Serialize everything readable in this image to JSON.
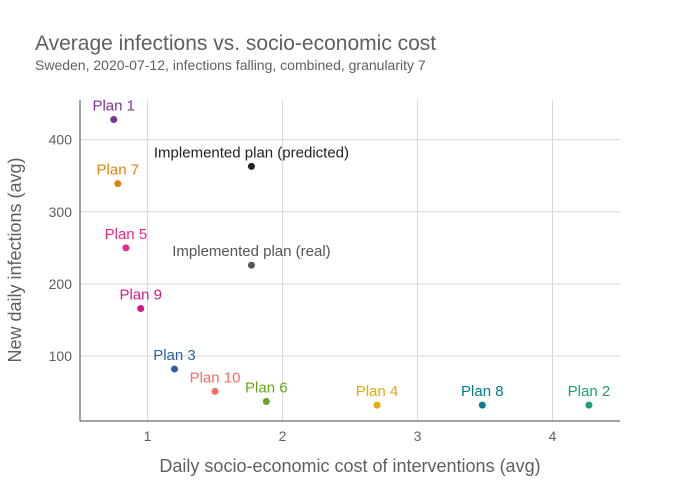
{
  "chart_data": {
    "type": "scatter",
    "title": "Average infections vs. socio-economic cost",
    "subtitle": "Sweden, 2020-07-12, infections falling, combined, granularity 7",
    "xlabel": "Daily socio-economic cost of interventions (avg)",
    "ylabel": "New daily infections (avg)",
    "xlim": [
      0.5,
      4.5
    ],
    "ylim": [
      10,
      455
    ],
    "xticks": [
      1,
      2,
      3,
      4
    ],
    "yticks": [
      100,
      200,
      300,
      400
    ],
    "grid": true,
    "points": [
      {
        "label": "Plan 1",
        "x": 0.75,
        "y": 428,
        "color": "#7b3294"
      },
      {
        "label": "Plan 7",
        "x": 0.78,
        "y": 339,
        "color": "#e08214"
      },
      {
        "label": "Plan 5",
        "x": 0.84,
        "y": 250,
        "color": "#e7298a"
      },
      {
        "label": "Plan 9",
        "x": 0.95,
        "y": 166,
        "color": "#d01c8b"
      },
      {
        "label": "Plan 3",
        "x": 1.2,
        "y": 82,
        "color": "#2c5fa3"
      },
      {
        "label": "Plan 10",
        "x": 1.5,
        "y": 51,
        "color": "#f46d5f"
      },
      {
        "label": "Plan 6",
        "x": 1.88,
        "y": 37,
        "color": "#66a61e"
      },
      {
        "label": "Plan 4",
        "x": 2.7,
        "y": 32,
        "color": "#e6ab02"
      },
      {
        "label": "Plan 8",
        "x": 3.48,
        "y": 32,
        "color": "#00808a"
      },
      {
        "label": "Plan 2",
        "x": 4.27,
        "y": 32,
        "color": "#1b9e77"
      },
      {
        "label": "Implemented plan (predicted)",
        "x": 1.77,
        "y": 363,
        "color": "#222222"
      },
      {
        "label": "Implemented plan (real)",
        "x": 1.77,
        "y": 226,
        "color": "#555555"
      }
    ]
  }
}
